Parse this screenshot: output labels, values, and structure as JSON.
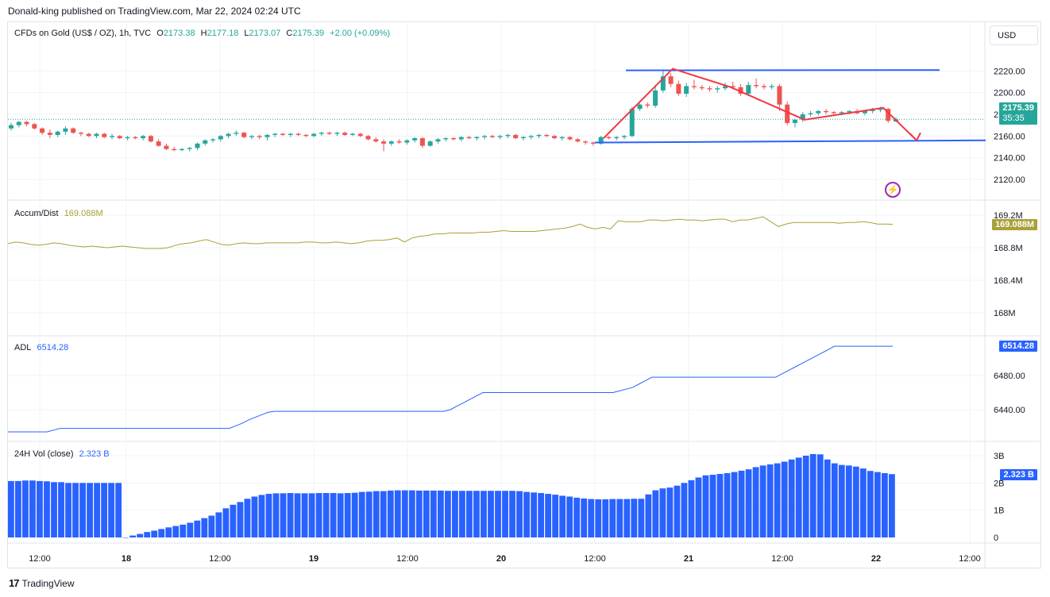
{
  "header": {
    "publisher": "Donald-king published on TradingView.com, Mar 22, 2024 02:24 UTC"
  },
  "main_legend": {
    "symbol": "CFDs on Gold (US$ / OZ), 1h, TVC",
    "o_label": "O",
    "o_value": "2173.38",
    "h_label": "H",
    "h_value": "2177.18",
    "l_label": "L",
    "l_value": "2173.07",
    "c_label": "C",
    "c_value": "2175.39",
    "change": "+2.00 (+0.09%)"
  },
  "currency_button": "USD",
  "price_badge": {
    "price": "2175.39",
    "countdown": "35:35"
  },
  "accum_legend": {
    "name": "Accum/Dist",
    "value": "169.088M"
  },
  "adl_legend": {
    "name": "ADL",
    "value": "6514.28"
  },
  "vol_legend": {
    "name": "24H Vol (close)",
    "value": "2.323 B"
  },
  "footer": {
    "brand": "TradingView"
  },
  "colors": {
    "up": "#26a69a",
    "down": "#ef5350",
    "accum": "#a9a037",
    "adl": "#2962ff",
    "vol": "#2962ff",
    "drawing_red": "#f23645",
    "drawing_blue": "#2962ff"
  },
  "chart_data": [
    {
      "type": "candlestick",
      "title": "CFDs on Gold (US$ / OZ), 1h, TVC",
      "x_ticks": [
        "12:00",
        "18",
        "12:00",
        "19",
        "12:00",
        "20",
        "12:00",
        "21",
        "12:00",
        "22",
        "12:00"
      ],
      "y_ticks": [
        "2120.00",
        "2140.00",
        "2160.00",
        "2180.00",
        "2200.00",
        "2220.00"
      ],
      "ylim": [
        2110,
        2230
      ],
      "ohlc": [
        [
          2167,
          2172,
          2165,
          2170
        ],
        [
          2170,
          2174,
          2168,
          2173
        ],
        [
          2173,
          2174,
          2169,
          2171
        ],
        [
          2171,
          2172,
          2166,
          2167
        ],
        [
          2167,
          2168,
          2161,
          2163
        ],
        [
          2163,
          2166,
          2158,
          2161
        ],
        [
          2161,
          2165,
          2159,
          2164
        ],
        [
          2164,
          2169,
          2161,
          2167
        ],
        [
          2167,
          2168,
          2162,
          2163
        ],
        [
          2163,
          2164,
          2160,
          2162
        ],
        [
          2162,
          2163,
          2159,
          2160
        ],
        [
          2160,
          2163,
          2158,
          2162
        ],
        [
          2162,
          2163,
          2158,
          2159
        ],
        [
          2159,
          2162,
          2157,
          2160
        ],
        [
          2160,
          2161,
          2157,
          2158
        ],
        [
          2158,
          2160,
          2156,
          2159
        ],
        [
          2159,
          2160,
          2157,
          2158
        ],
        [
          2158,
          2161,
          2156,
          2160
        ],
        [
          2160,
          2161,
          2154,
          2155
        ],
        [
          2155,
          2157,
          2150,
          2151
        ],
        [
          2151,
          2153,
          2147,
          2148
        ],
        [
          2148,
          2150,
          2146,
          2147
        ],
        [
          2147,
          2149,
          2146,
          2148
        ],
        [
          2148,
          2150,
          2146,
          2149
        ],
        [
          2149,
          2154,
          2147,
          2153
        ],
        [
          2153,
          2157,
          2151,
          2156
        ],
        [
          2156,
          2158,
          2154,
          2157
        ],
        [
          2157,
          2161,
          2155,
          2160
        ],
        [
          2160,
          2163,
          2158,
          2162
        ],
        [
          2162,
          2165,
          2160,
          2163
        ],
        [
          2163,
          2164,
          2158,
          2159
        ],
        [
          2159,
          2161,
          2157,
          2160
        ],
        [
          2160,
          2161,
          2157,
          2159
        ],
        [
          2159,
          2162,
          2156,
          2161
        ],
        [
          2161,
          2163,
          2159,
          2162
        ],
        [
          2162,
          2163,
          2160,
          2161
        ],
        [
          2161,
          2163,
          2159,
          2162
        ],
        [
          2162,
          2163,
          2160,
          2161
        ],
        [
          2161,
          2162,
          2159,
          2160
        ],
        [
          2160,
          2163,
          2159,
          2162
        ],
        [
          2162,
          2164,
          2160,
          2163
        ],
        [
          2163,
          2164,
          2161,
          2162
        ],
        [
          2162,
          2164,
          2160,
          2163
        ],
        [
          2163,
          2164,
          2160,
          2161
        ],
        [
          2161,
          2163,
          2160,
          2162
        ],
        [
          2162,
          2163,
          2159,
          2160
        ],
        [
          2160,
          2161,
          2156,
          2157
        ],
        [
          2157,
          2159,
          2154,
          2155
        ],
        [
          2155,
          2157,
          2146,
          2153
        ],
        [
          2153,
          2156,
          2151,
          2155
        ],
        [
          2155,
          2157,
          2153,
          2154
        ],
        [
          2154,
          2157,
          2152,
          2156
        ],
        [
          2156,
          2159,
          2154,
          2158
        ],
        [
          2158,
          2159,
          2149,
          2151
        ],
        [
          2151,
          2156,
          2150,
          2155
        ],
        [
          2155,
          2158,
          2153,
          2157
        ],
        [
          2157,
          2159,
          2155,
          2158
        ],
        [
          2158,
          2159,
          2156,
          2157
        ],
        [
          2157,
          2160,
          2155,
          2159
        ],
        [
          2159,
          2160,
          2157,
          2158
        ],
        [
          2158,
          2160,
          2156,
          2159
        ],
        [
          2159,
          2161,
          2157,
          2160
        ],
        [
          2160,
          2161,
          2158,
          2159
        ],
        [
          2159,
          2161,
          2157,
          2160
        ],
        [
          2160,
          2162,
          2158,
          2161
        ],
        [
          2161,
          2162,
          2157,
          2158
        ],
        [
          2158,
          2160,
          2156,
          2159
        ],
        [
          2159,
          2161,
          2157,
          2160
        ],
        [
          2160,
          2162,
          2158,
          2161
        ],
        [
          2161,
          2162,
          2159,
          2160
        ],
        [
          2160,
          2161,
          2157,
          2158
        ],
        [
          2158,
          2160,
          2156,
          2159
        ],
        [
          2159,
          2160,
          2156,
          2157
        ],
        [
          2157,
          2158,
          2154,
          2155
        ],
        [
          2155,
          2156,
          2152,
          2154
        ],
        [
          2154,
          2155,
          2151,
          2153
        ],
        [
          2153,
          2160,
          2152,
          2159
        ],
        [
          2159,
          2160,
          2157,
          2158
        ],
        [
          2158,
          2160,
          2156,
          2159
        ],
        [
          2159,
          2161,
          2157,
          2160
        ],
        [
          2160,
          2187,
          2159,
          2185
        ],
        [
          2185,
          2190,
          2183,
          2189
        ],
        [
          2189,
          2191,
          2186,
          2188
        ],
        [
          2188,
          2207,
          2186,
          2202
        ],
        [
          2202,
          2220,
          2200,
          2215
        ],
        [
          2215,
          2218,
          2205,
          2208
        ],
        [
          2208,
          2211,
          2197,
          2199
        ],
        [
          2199,
          2209,
          2196,
          2206
        ],
        [
          2206,
          2212,
          2203,
          2205
        ],
        [
          2205,
          2207,
          2202,
          2204
        ],
        [
          2204,
          2206,
          2201,
          2203
        ],
        [
          2203,
          2206,
          2200,
          2204
        ],
        [
          2204,
          2209,
          2202,
          2206
        ],
        [
          2206,
          2210,
          2203,
          2205
        ],
        [
          2205,
          2208,
          2197,
          2199
        ],
        [
          2199,
          2210,
          2197,
          2207
        ],
        [
          2207,
          2213,
          2204,
          2206
        ],
        [
          2206,
          2208,
          2203,
          2205
        ],
        [
          2205,
          2208,
          2203,
          2206
        ],
        [
          2206,
          2208,
          2183,
          2189
        ],
        [
          2189,
          2192,
          2170,
          2172
        ],
        [
          2172,
          2176,
          2168,
          2175
        ],
        [
          2175,
          2182,
          2173,
          2180
        ],
        [
          2180,
          2183,
          2178,
          2181
        ],
        [
          2181,
          2184,
          2179,
          2183
        ],
        [
          2183,
          2185,
          2180,
          2182
        ],
        [
          2182,
          2183,
          2179,
          2181
        ],
        [
          2181,
          2183,
          2179,
          2182
        ],
        [
          2182,
          2184,
          2180,
          2183
        ],
        [
          2183,
          2185,
          2180,
          2181
        ],
        [
          2181,
          2184,
          2179,
          2183
        ],
        [
          2183,
          2186,
          2181,
          2184
        ],
        [
          2184,
          2187,
          2182,
          2185
        ],
        [
          2185,
          2186,
          2172,
          2174
        ],
        [
          2173.38,
          2177.18,
          2173.07,
          2175.39
        ]
      ],
      "last_price": 2175.39
    },
    {
      "type": "line",
      "name": "Accum/Dist",
      "y_ticks": [
        "168M",
        "168.4M",
        "168.8M",
        "169.2M"
      ],
      "ylim": [
        167.95,
        169.2
      ],
      "values": [
        168.85,
        168.87,
        168.86,
        168.84,
        168.83,
        168.84,
        168.86,
        168.85,
        168.83,
        168.82,
        168.81,
        168.82,
        168.81,
        168.8,
        168.81,
        168.82,
        168.81,
        168.8,
        168.79,
        168.79,
        168.79,
        168.8,
        168.83,
        168.85,
        168.86,
        168.88,
        168.9,
        168.87,
        168.84,
        168.83,
        168.85,
        168.86,
        168.85,
        168.85,
        168.86,
        168.86,
        168.86,
        168.86,
        168.86,
        168.87,
        168.87,
        168.86,
        168.86,
        168.87,
        168.86,
        168.85,
        168.86,
        168.88,
        168.89,
        168.89,
        168.9,
        168.92,
        168.87,
        168.92,
        168.94,
        168.95,
        168.97,
        168.97,
        168.98,
        168.98,
        168.98,
        168.98,
        168.99,
        168.99,
        169.0,
        169.01,
        169.0,
        169.0,
        169.0,
        169.0,
        169.01,
        169.02,
        169.03,
        169.04,
        169.06,
        169.09,
        169.05,
        169.03,
        169.05,
        169.03,
        169.13,
        169.12,
        169.12,
        169.12,
        169.14,
        169.14,
        169.13,
        169.14,
        169.15,
        169.14,
        169.14,
        169.13,
        169.14,
        169.15,
        169.15,
        169.12,
        169.14,
        169.14,
        169.16,
        169.18,
        169.12,
        169.06,
        169.09,
        169.11,
        169.11,
        169.11,
        169.11,
        169.11,
        169.11,
        169.1,
        169.11,
        169.11,
        169.12,
        169.11,
        169.09,
        169.09,
        169.088
      ]
    },
    {
      "type": "line",
      "name": "ADL",
      "y_ticks": [
        "6440.00",
        "6480.00"
      ],
      "ylim": [
        6415,
        6525
      ],
      "values": [
        6414,
        6414,
        6414,
        6414,
        6414,
        6414,
        6414,
        6416,
        6418,
        6418,
        6418,
        6418,
        6418,
        6418,
        6418,
        6418,
        6418,
        6418,
        6418,
        6418,
        6418,
        6418,
        6418,
        6418,
        6418,
        6418,
        6418,
        6418,
        6418,
        6418,
        6418,
        6418,
        6418,
        6418,
        6418,
        6421,
        6424,
        6428,
        6431,
        6434,
        6437,
        6438,
        6438,
        6438,
        6438,
        6438,
        6438,
        6438,
        6438,
        6438,
        6438,
        6438,
        6438,
        6438,
        6438,
        6438,
        6438,
        6438,
        6438,
        6438,
        6438,
        6438,
        6438,
        6438,
        6438,
        6438,
        6438,
        6438,
        6440,
        6444,
        6448,
        6452,
        6456,
        6460,
        6460,
        6460,
        6460,
        6460,
        6460,
        6460,
        6460,
        6460,
        6460,
        6460,
        6460,
        6460,
        6460,
        6460,
        6460,
        6460,
        6460,
        6460,
        6460,
        6460,
        6462,
        6464,
        6466,
        6470,
        6474,
        6478,
        6478,
        6478,
        6478,
        6478,
        6478,
        6478,
        6478,
        6478,
        6478,
        6478,
        6478,
        6478,
        6478,
        6478,
        6478,
        6478,
        6478,
        6478,
        6478,
        6482,
        6486,
        6490,
        6494,
        6498,
        6502,
        6506,
        6510,
        6514.28,
        6514.28,
        6514.28,
        6514.28,
        6514.28,
        6514.28,
        6514.28,
        6514.28,
        6514.28,
        6514.28
      ]
    },
    {
      "type": "bar",
      "name": "24H Vol (close)",
      "y_ticks": [
        "0",
        "1B",
        "2B",
        "3B"
      ],
      "ylim": [
        0,
        3.2
      ],
      "values": [
        2.07,
        2.07,
        2.09,
        2.09,
        2.07,
        2.06,
        2.03,
        2.03,
        2.0,
        2.0,
        2.0,
        2.0,
        2.0,
        2.0,
        2.0,
        2.0,
        0.0,
        0.07,
        0.13,
        0.2,
        0.25,
        0.31,
        0.37,
        0.42,
        0.47,
        0.54,
        0.62,
        0.71,
        0.8,
        0.92,
        1.07,
        1.2,
        1.3,
        1.42,
        1.5,
        1.56,
        1.6,
        1.62,
        1.62,
        1.63,
        1.62,
        1.62,
        1.62,
        1.63,
        1.63,
        1.63,
        1.62,
        1.63,
        1.64,
        1.67,
        1.68,
        1.7,
        1.7,
        1.72,
        1.73,
        1.73,
        1.73,
        1.72,
        1.72,
        1.72,
        1.72,
        1.71,
        1.71,
        1.71,
        1.71,
        1.71,
        1.71,
        1.71,
        1.71,
        1.71,
        1.71,
        1.7,
        1.67,
        1.65,
        1.63,
        1.6,
        1.57,
        1.53,
        1.5,
        1.46,
        1.43,
        1.41,
        1.4,
        1.4,
        1.41,
        1.41,
        1.41,
        1.42,
        1.42,
        1.58,
        1.73,
        1.8,
        1.83,
        1.9,
        2.0,
        2.1,
        2.2,
        2.28,
        2.3,
        2.33,
        2.36,
        2.4,
        2.45,
        2.5,
        2.58,
        2.64,
        2.68,
        2.72,
        2.78,
        2.86,
        2.93,
        3.0,
        3.06,
        3.05,
        2.86,
        2.72,
        2.66,
        2.64,
        2.6,
        2.53,
        2.44,
        2.4,
        2.36,
        2.323
      ]
    }
  ]
}
